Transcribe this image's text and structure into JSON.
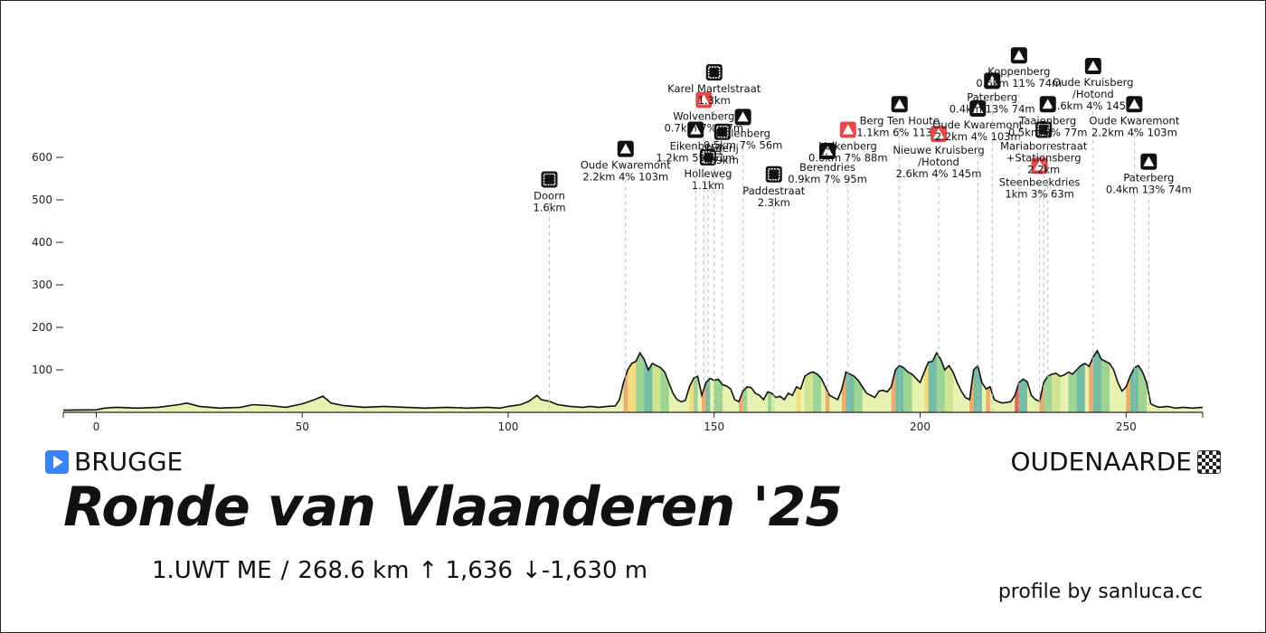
{
  "chart_data": {
    "type": "area",
    "xlim": [
      -8,
      268.6
    ],
    "ylim": [
      0,
      700
    ],
    "x_ticks": [
      0,
      50,
      100,
      150,
      200,
      250
    ],
    "y_ticks": [
      100,
      200,
      300,
      400,
      500,
      600
    ],
    "profile": [
      [
        -8,
        5
      ],
      [
        0,
        6
      ],
      [
        2,
        10
      ],
      [
        5,
        12
      ],
      [
        10,
        10
      ],
      [
        15,
        12
      ],
      [
        20,
        18
      ],
      [
        22,
        22
      ],
      [
        25,
        14
      ],
      [
        30,
        10
      ],
      [
        35,
        12
      ],
      [
        38,
        18
      ],
      [
        42,
        16
      ],
      [
        46,
        12
      ],
      [
        50,
        20
      ],
      [
        53,
        30
      ],
      [
        55,
        38
      ],
      [
        57,
        22
      ],
      [
        60,
        16
      ],
      [
        65,
        12
      ],
      [
        70,
        14
      ],
      [
        75,
        12
      ],
      [
        80,
        10
      ],
      [
        85,
        12
      ],
      [
        90,
        10
      ],
      [
        95,
        12
      ],
      [
        98,
        10
      ],
      [
        100,
        14
      ],
      [
        103,
        18
      ],
      [
        105,
        26
      ],
      [
        107,
        40
      ],
      [
        108,
        30
      ],
      [
        110,
        26
      ],
      [
        112,
        18
      ],
      [
        115,
        14
      ],
      [
        118,
        12
      ],
      [
        120,
        14
      ],
      [
        122,
        12
      ],
      [
        124,
        14
      ],
      [
        126,
        15
      ],
      [
        127,
        30
      ],
      [
        128,
        70
      ],
      [
        129,
        100
      ],
      [
        130,
        115
      ],
      [
        131,
        120
      ],
      [
        132,
        140
      ],
      [
        133,
        125
      ],
      [
        134,
        100
      ],
      [
        135,
        115
      ],
      [
        136,
        110
      ],
      [
        137,
        105
      ],
      [
        138,
        95
      ],
      [
        139,
        70
      ],
      [
        140,
        45
      ],
      [
        141,
        30
      ],
      [
        142,
        25
      ],
      [
        143,
        28
      ],
      [
        144,
        60
      ],
      [
        145,
        80
      ],
      [
        146,
        85
      ],
      [
        147,
        40
      ],
      [
        148,
        70
      ],
      [
        149,
        80
      ],
      [
        150,
        75
      ],
      [
        151,
        78
      ],
      [
        152,
        65
      ],
      [
        153,
        62
      ],
      [
        154,
        55
      ],
      [
        155,
        30
      ],
      [
        156,
        25
      ],
      [
        157,
        50
      ],
      [
        158,
        60
      ],
      [
        159,
        58
      ],
      [
        160,
        45
      ],
      [
        161,
        40
      ],
      [
        162,
        30
      ],
      [
        163,
        48
      ],
      [
        164,
        45
      ],
      [
        165,
        35
      ],
      [
        166,
        38
      ],
      [
        167,
        30
      ],
      [
        168,
        45
      ],
      [
        169,
        40
      ],
      [
        170,
        60
      ],
      [
        171,
        55
      ],
      [
        172,
        85
      ],
      [
        173,
        92
      ],
      [
        174,
        95
      ],
      [
        175,
        90
      ],
      [
        176,
        80
      ],
      [
        177,
        60
      ],
      [
        178,
        40
      ],
      [
        179,
        35
      ],
      [
        180,
        30
      ],
      [
        181,
        55
      ],
      [
        182,
        95
      ],
      [
        183,
        90
      ],
      [
        184,
        85
      ],
      [
        185,
        75
      ],
      [
        186,
        60
      ],
      [
        187,
        45
      ],
      [
        188,
        40
      ],
      [
        189,
        35
      ],
      [
        190,
        50
      ],
      [
        191,
        52
      ],
      [
        192,
        48
      ],
      [
        193,
        60
      ],
      [
        194,
        100
      ],
      [
        195,
        110
      ],
      [
        196,
        105
      ],
      [
        197,
        95
      ],
      [
        198,
        90
      ],
      [
        199,
        80
      ],
      [
        200,
        70
      ],
      [
        201,
        95
      ],
      [
        202,
        118
      ],
      [
        203,
        120
      ],
      [
        204,
        140
      ],
      [
        205,
        125
      ],
      [
        206,
        100
      ],
      [
        207,
        110
      ],
      [
        208,
        95
      ],
      [
        209,
        70
      ],
      [
        210,
        50
      ],
      [
        211,
        35
      ],
      [
        212,
        30
      ],
      [
        213,
        100
      ],
      [
        214,
        110
      ],
      [
        215,
        70
      ],
      [
        216,
        55
      ],
      [
        217,
        60
      ],
      [
        218,
        30
      ],
      [
        219,
        25
      ],
      [
        220,
        22
      ],
      [
        222,
        25
      ],
      [
        223,
        40
      ],
      [
        224,
        70
      ],
      [
        225,
        78
      ],
      [
        226,
        72
      ],
      [
        227,
        40
      ],
      [
        228,
        30
      ],
      [
        229,
        26
      ],
      [
        230,
        70
      ],
      [
        231,
        85
      ],
      [
        232,
        90
      ],
      [
        233,
        92
      ],
      [
        234,
        85
      ],
      [
        235,
        88
      ],
      [
        236,
        95
      ],
      [
        237,
        90
      ],
      [
        238,
        100
      ],
      [
        239,
        110
      ],
      [
        240,
        115
      ],
      [
        241,
        108
      ],
      [
        242,
        130
      ],
      [
        243,
        145
      ],
      [
        244,
        125
      ],
      [
        245,
        120
      ],
      [
        246,
        115
      ],
      [
        247,
        100
      ],
      [
        248,
        70
      ],
      [
        249,
        50
      ],
      [
        250,
        60
      ],
      [
        251,
        85
      ],
      [
        252,
        105
      ],
      [
        253,
        110
      ],
      [
        254,
        95
      ],
      [
        255,
        70
      ],
      [
        256,
        20
      ],
      [
        257,
        15
      ],
      [
        258,
        12
      ],
      [
        260,
        14
      ],
      [
        262,
        10
      ],
      [
        264,
        12
      ],
      [
        266,
        10
      ],
      [
        268.6,
        12
      ]
    ],
    "climbs": [
      {
        "name": "Doorn",
        "detail": "1.6km",
        "x": 110,
        "y": 548,
        "icon": "cobbles"
      },
      {
        "name": "Oude Kwaremont",
        "detail": "2.2km 4% 103m",
        "x": 128.5,
        "y": 620,
        "icon": "climb"
      },
      {
        "name": "Holleweg",
        "detail": "1.1km",
        "x": 148.5,
        "y": 600,
        "icon": "cobbles"
      },
      {
        "name": "Eikenberg",
        "detail": "1.2km 5% 61m",
        "x": 145.5,
        "y": 665,
        "icon": "climb"
      },
      {
        "name": "Wolvenberg",
        "detail": "0.7km 7% 47m",
        "x": 147.5,
        "y": 735,
        "icon": "climb-steep"
      },
      {
        "name": "Karel Martelstraat",
        "detail": "1.3km",
        "x": 150,
        "y": 800,
        "icon": "cobbles"
      },
      {
        "name": "Jagerij",
        "detail": "0.9km",
        "x": 152,
        "y": 660,
        "icon": "cobbles"
      },
      {
        "name": "Molenberg",
        "detail": "0.5km 7% 56m",
        "x": 157,
        "y": 695,
        "icon": "climb"
      },
      {
        "name": "Paddestraat",
        "detail": "2.3km",
        "x": 164.5,
        "y": 560,
        "icon": "cobbles"
      },
      {
        "name": "Berendries",
        "detail": "0.9km 7% 95m",
        "x": 177.5,
        "y": 615,
        "icon": "climb"
      },
      {
        "name": "Valkenberg",
        "detail": "0.6km 7% 88m",
        "x": 182.5,
        "y": 665,
        "icon": "climb-steep"
      },
      {
        "name": "Berg Ten Houte",
        "detail": "1.1km 6% 113m",
        "x": 195,
        "y": 725,
        "icon": "climb"
      },
      {
        "name": "Nieuwe Kruisberg /Hotond",
        "detail": "2.6km 4% 145m",
        "x": 204.5,
        "y": 655,
        "icon": "climb-steep"
      },
      {
        "name": "Oude Kwaremont",
        "detail": "2.2km 4% 103m",
        "x": 214,
        "y": 715,
        "icon": "climb"
      },
      {
        "name": "Paterberg",
        "detail": "0.4km 13% 74m",
        "x": 217.5,
        "y": 780,
        "icon": "climb"
      },
      {
        "name": "Koppenberg",
        "detail": "0.6km 11% 74m",
        "x": 224,
        "y": 840,
        "icon": "climb"
      },
      {
        "name": "Steenbeekdries",
        "detail": "1km 3% 63m",
        "x": 229,
        "y": 580,
        "icon": "climb-steep"
      },
      {
        "name": "Mariaborrestraat +Stationsberg",
        "detail": "2.2km",
        "x": 230,
        "y": 665,
        "icon": "cobbles"
      },
      {
        "name": "Taaienberg",
        "detail": "0.5km 8% 77m",
        "x": 231,
        "y": 725,
        "icon": "climb"
      },
      {
        "name": "Oude Kruisberg /Hotond",
        "detail": "2.6km 4% 145m",
        "x": 242,
        "y": 815,
        "icon": "climb"
      },
      {
        "name": "Oude Kwaremont",
        "detail": "2.2km 4% 103m",
        "x": 252,
        "y": 725,
        "icon": "climb"
      },
      {
        "name": "Paterberg",
        "detail": "0.4km 13% 74m",
        "x": 255.5,
        "y": 590,
        "icon": "climb"
      }
    ],
    "colors": {
      "line": "#111111",
      "fill": "#e6f2b0",
      "steep": "#e34b4b",
      "dashed": "#bbbbbb"
    },
    "gradient_bands": [
      {
        "from": 128,
        "to": 129,
        "color": "#f0a05a"
      },
      {
        "from": 129,
        "to": 131,
        "color": "#f7d774"
      },
      {
        "from": 131,
        "to": 133,
        "color": "#8fcf8f"
      },
      {
        "from": 133,
        "to": 135,
        "color": "#5fb3a0"
      },
      {
        "from": 135,
        "to": 137,
        "color": "#c9e28a"
      },
      {
        "from": 137,
        "to": 139,
        "color": "#8fcf8f"
      },
      {
        "from": 144,
        "to": 145,
        "color": "#f7d774"
      },
      {
        "from": 145,
        "to": 146,
        "color": "#8fcf8f"
      },
      {
        "from": 147,
        "to": 148,
        "color": "#f0a05a"
      },
      {
        "from": 148,
        "to": 149,
        "color": "#5fb3a0"
      },
      {
        "from": 150,
        "to": 152,
        "color": "#8fcf8f"
      },
      {
        "from": 156,
        "to": 157,
        "color": "#f0a05a"
      },
      {
        "from": 157,
        "to": 158,
        "color": "#8fcf8f"
      },
      {
        "from": 163,
        "to": 164,
        "color": "#8fcf8f"
      },
      {
        "from": 170,
        "to": 171,
        "color": "#f7d774"
      },
      {
        "from": 172,
        "to": 174,
        "color": "#c9e28a"
      },
      {
        "from": 174,
        "to": 176,
        "color": "#8fcf8f"
      },
      {
        "from": 177,
        "to": 178,
        "color": "#f0a05a"
      },
      {
        "from": 181,
        "to": 182,
        "color": "#f0a05a"
      },
      {
        "from": 182,
        "to": 184,
        "color": "#5fb3a0"
      },
      {
        "from": 184,
        "to": 186,
        "color": "#8fcf8f"
      },
      {
        "from": 193,
        "to": 194,
        "color": "#f0a05a"
      },
      {
        "from": 194,
        "to": 196,
        "color": "#5fb3a0"
      },
      {
        "from": 196,
        "to": 198,
        "color": "#8fcf8f"
      },
      {
        "from": 201,
        "to": 202,
        "color": "#f7d774"
      },
      {
        "from": 202,
        "to": 204,
        "color": "#5fb3a0"
      },
      {
        "from": 204,
        "to": 206,
        "color": "#8fcf8f"
      },
      {
        "from": 206,
        "to": 208,
        "color": "#c9e28a"
      },
      {
        "from": 212,
        "to": 213,
        "color": "#f0a05a"
      },
      {
        "from": 213,
        "to": 215,
        "color": "#5fb3a0"
      },
      {
        "from": 216,
        "to": 217,
        "color": "#f0a05a"
      },
      {
        "from": 223,
        "to": 224,
        "color": "#e34b4b"
      },
      {
        "from": 224,
        "to": 226,
        "color": "#5fb3a0"
      },
      {
        "from": 229,
        "to": 230,
        "color": "#f0a05a"
      },
      {
        "from": 230,
        "to": 232,
        "color": "#8fcf8f"
      },
      {
        "from": 232,
        "to": 234,
        "color": "#c9e28a"
      },
      {
        "from": 236,
        "to": 238,
        "color": "#8fcf8f"
      },
      {
        "from": 238,
        "to": 240,
        "color": "#5fb3a0"
      },
      {
        "from": 241,
        "to": 242,
        "color": "#f0a05a"
      },
      {
        "from": 242,
        "to": 244,
        "color": "#5fb3a0"
      },
      {
        "from": 244,
        "to": 246,
        "color": "#8fcf8f"
      },
      {
        "from": 250,
        "to": 251,
        "color": "#f0a05a"
      },
      {
        "from": 251,
        "to": 253,
        "color": "#5fb3a0"
      },
      {
        "from": 253,
        "to": 255,
        "color": "#8fcf8f"
      }
    ]
  },
  "start": {
    "label": "BRUGGE",
    "icon": "play-icon"
  },
  "finish": {
    "label": "OUDENAARDE",
    "icon": "checkered-flag-icon"
  },
  "title": "Ronde van Vlaanderen '25",
  "stats": {
    "category": "1.UWT ME",
    "separator": "/",
    "distance": "268.6 km",
    "ascent": "↑ 1,636",
    "descent": "↓-1,630 m"
  },
  "credit": "profile by sanluca.cc"
}
